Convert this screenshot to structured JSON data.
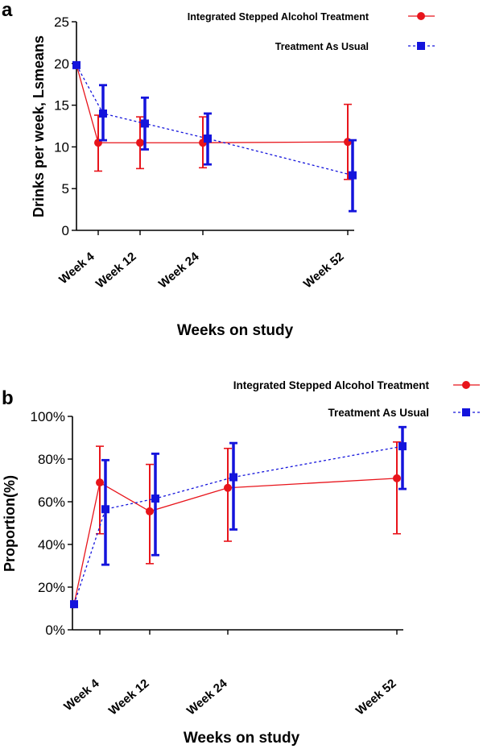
{
  "chart_data": [
    {
      "panel": "a",
      "type": "line",
      "ylabel": "Drinks per week, Lsmeans",
      "xlabel": "Weeks on study",
      "ylim": [
        0,
        25
      ],
      "yticks": [
        "0",
        "5",
        "10",
        "15",
        "20",
        "25"
      ],
      "ytick_values": [
        0,
        5,
        10,
        15,
        20,
        25
      ],
      "xtick_labels": [
        "Week 4",
        "Week 12",
        "Week 24",
        "Week 52"
      ],
      "xtick_weeks": [
        4,
        12,
        24,
        52
      ],
      "legend_position": "top-right",
      "series": [
        {
          "name": "Integrated Stepped Alcohol Treatment",
          "color": "#e8141b",
          "marker": "circle",
          "style": "solid",
          "x": [
            0,
            4,
            12,
            24,
            52
          ],
          "y": [
            19.8,
            10.5,
            10.5,
            10.5,
            10.6
          ],
          "err_low": [
            19.8,
            7.1,
            7.4,
            7.5,
            6.1
          ],
          "err_high": [
            19.8,
            13.8,
            13.6,
            13.6,
            15.1
          ]
        },
        {
          "name": "Treatment As Usual",
          "color": "#1414dc",
          "marker": "square",
          "style": "dashed",
          "x": [
            0,
            4,
            12,
            24,
            52
          ],
          "y": [
            19.8,
            14.0,
            12.8,
            11.0,
            6.6
          ],
          "err_low": [
            19.8,
            10.8,
            9.7,
            7.9,
            2.3
          ],
          "err_high": [
            19.8,
            17.4,
            15.9,
            14.0,
            10.8
          ]
        }
      ]
    },
    {
      "panel": "b",
      "type": "line",
      "ylabel": "Proportion(%)",
      "xlabel": "Weeks on study",
      "ylim": [
        0,
        100
      ],
      "yticks": [
        "0%",
        "20%",
        "40%",
        "60%",
        "80%",
        "100%"
      ],
      "ytick_values": [
        0,
        20,
        40,
        60,
        80,
        100
      ],
      "xtick_labels": [
        "Week 4",
        "Week 12",
        "Week 24",
        "Week 52"
      ],
      "xtick_weeks": [
        4,
        12,
        24,
        52
      ],
      "legend_position": "top-right",
      "series": [
        {
          "name": "Integrated Stepped Alcohol Treatment",
          "color": "#e8141b",
          "marker": "circle",
          "style": "solid",
          "x": [
            0,
            4,
            12,
            24,
            52
          ],
          "y": [
            12,
            69,
            55.5,
            66.5,
            71
          ],
          "err_low": [
            12,
            45,
            31,
            41.5,
            45
          ],
          "err_high": [
            12,
            86,
            77.5,
            85,
            88
          ]
        },
        {
          "name": "Treatment As Usual",
          "color": "#1414dc",
          "marker": "square",
          "style": "dashed",
          "x": [
            0,
            4,
            12,
            24,
            52
          ],
          "y": [
            12,
            56.5,
            61.5,
            71.5,
            86
          ],
          "err_low": [
            12,
            30.5,
            35,
            47,
            66
          ],
          "err_high": [
            12,
            79.5,
            82.5,
            87.5,
            95
          ]
        }
      ]
    }
  ]
}
